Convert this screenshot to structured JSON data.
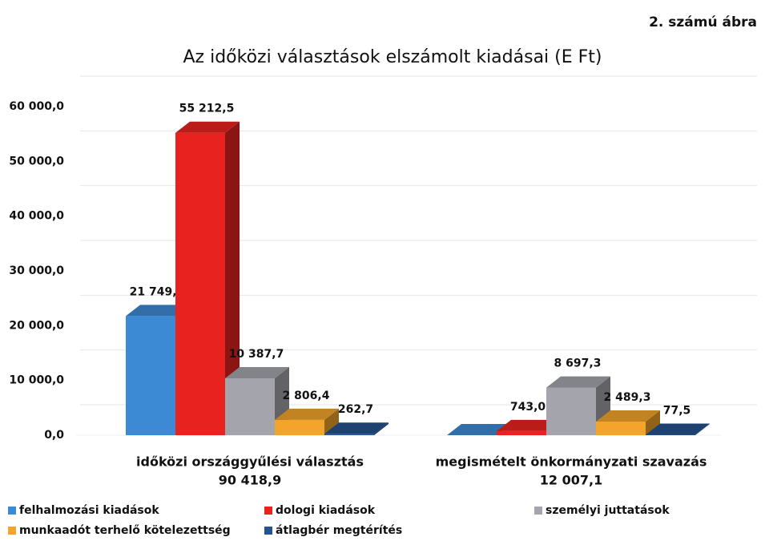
{
  "chart_data": {
    "type": "bar3d",
    "figure_label": "2. számú ábra",
    "title": "Az időközi választások elszámolt kiadásai (E Ft)",
    "categories": [
      "időközi országgyűlési választás",
      "megismételt önkormányzati szavazás"
    ],
    "totals": {
      "values": [
        90418.9,
        12007.1
      ],
      "value_labels": [
        "90 418,9",
        "12 007,1"
      ]
    },
    "series": [
      {
        "name": "felhalmozási kiadások",
        "color": "#3d8ad4",
        "values": [
          21749.6,
          0
        ],
        "value_labels": [
          "21 749,6",
          null
        ]
      },
      {
        "name": "dologi kiadások",
        "color": "#e8231f",
        "values": [
          55212.5,
          743.0
        ],
        "value_labels": [
          "55 212,5",
          "743,0"
        ]
      },
      {
        "name": "személyi juttatások",
        "color": "#a4a4ac",
        "values": [
          10387.7,
          8697.3
        ],
        "value_labels": [
          "10 387,7",
          "8 697,3"
        ]
      },
      {
        "name": "munkaadót terhelő kötelezettség",
        "color": "#f2a52a",
        "values": [
          2806.4,
          2489.3
        ],
        "value_labels": [
          "2 806,4",
          "2 489,3"
        ]
      },
      {
        "name": "átlagbér megtérítés",
        "color": "#24538f",
        "values": [
          262.7,
          77.5
        ],
        "value_labels": [
          "262,7",
          "77,5"
        ]
      }
    ],
    "ylim": [
      0,
      60000
    ],
    "yticks": [
      {
        "value": 0,
        "label": "0,0"
      },
      {
        "value": 10000,
        "label": "10 000,0"
      },
      {
        "value": 20000,
        "label": "20 000,0"
      },
      {
        "value": 30000,
        "label": "30 000,0"
      },
      {
        "value": 40000,
        "label": "40 000,0"
      },
      {
        "value": 50000,
        "label": "50 000,0"
      },
      {
        "value": 60000,
        "label": "60 000,0"
      }
    ],
    "grid": true,
    "legend": "bottom"
  }
}
